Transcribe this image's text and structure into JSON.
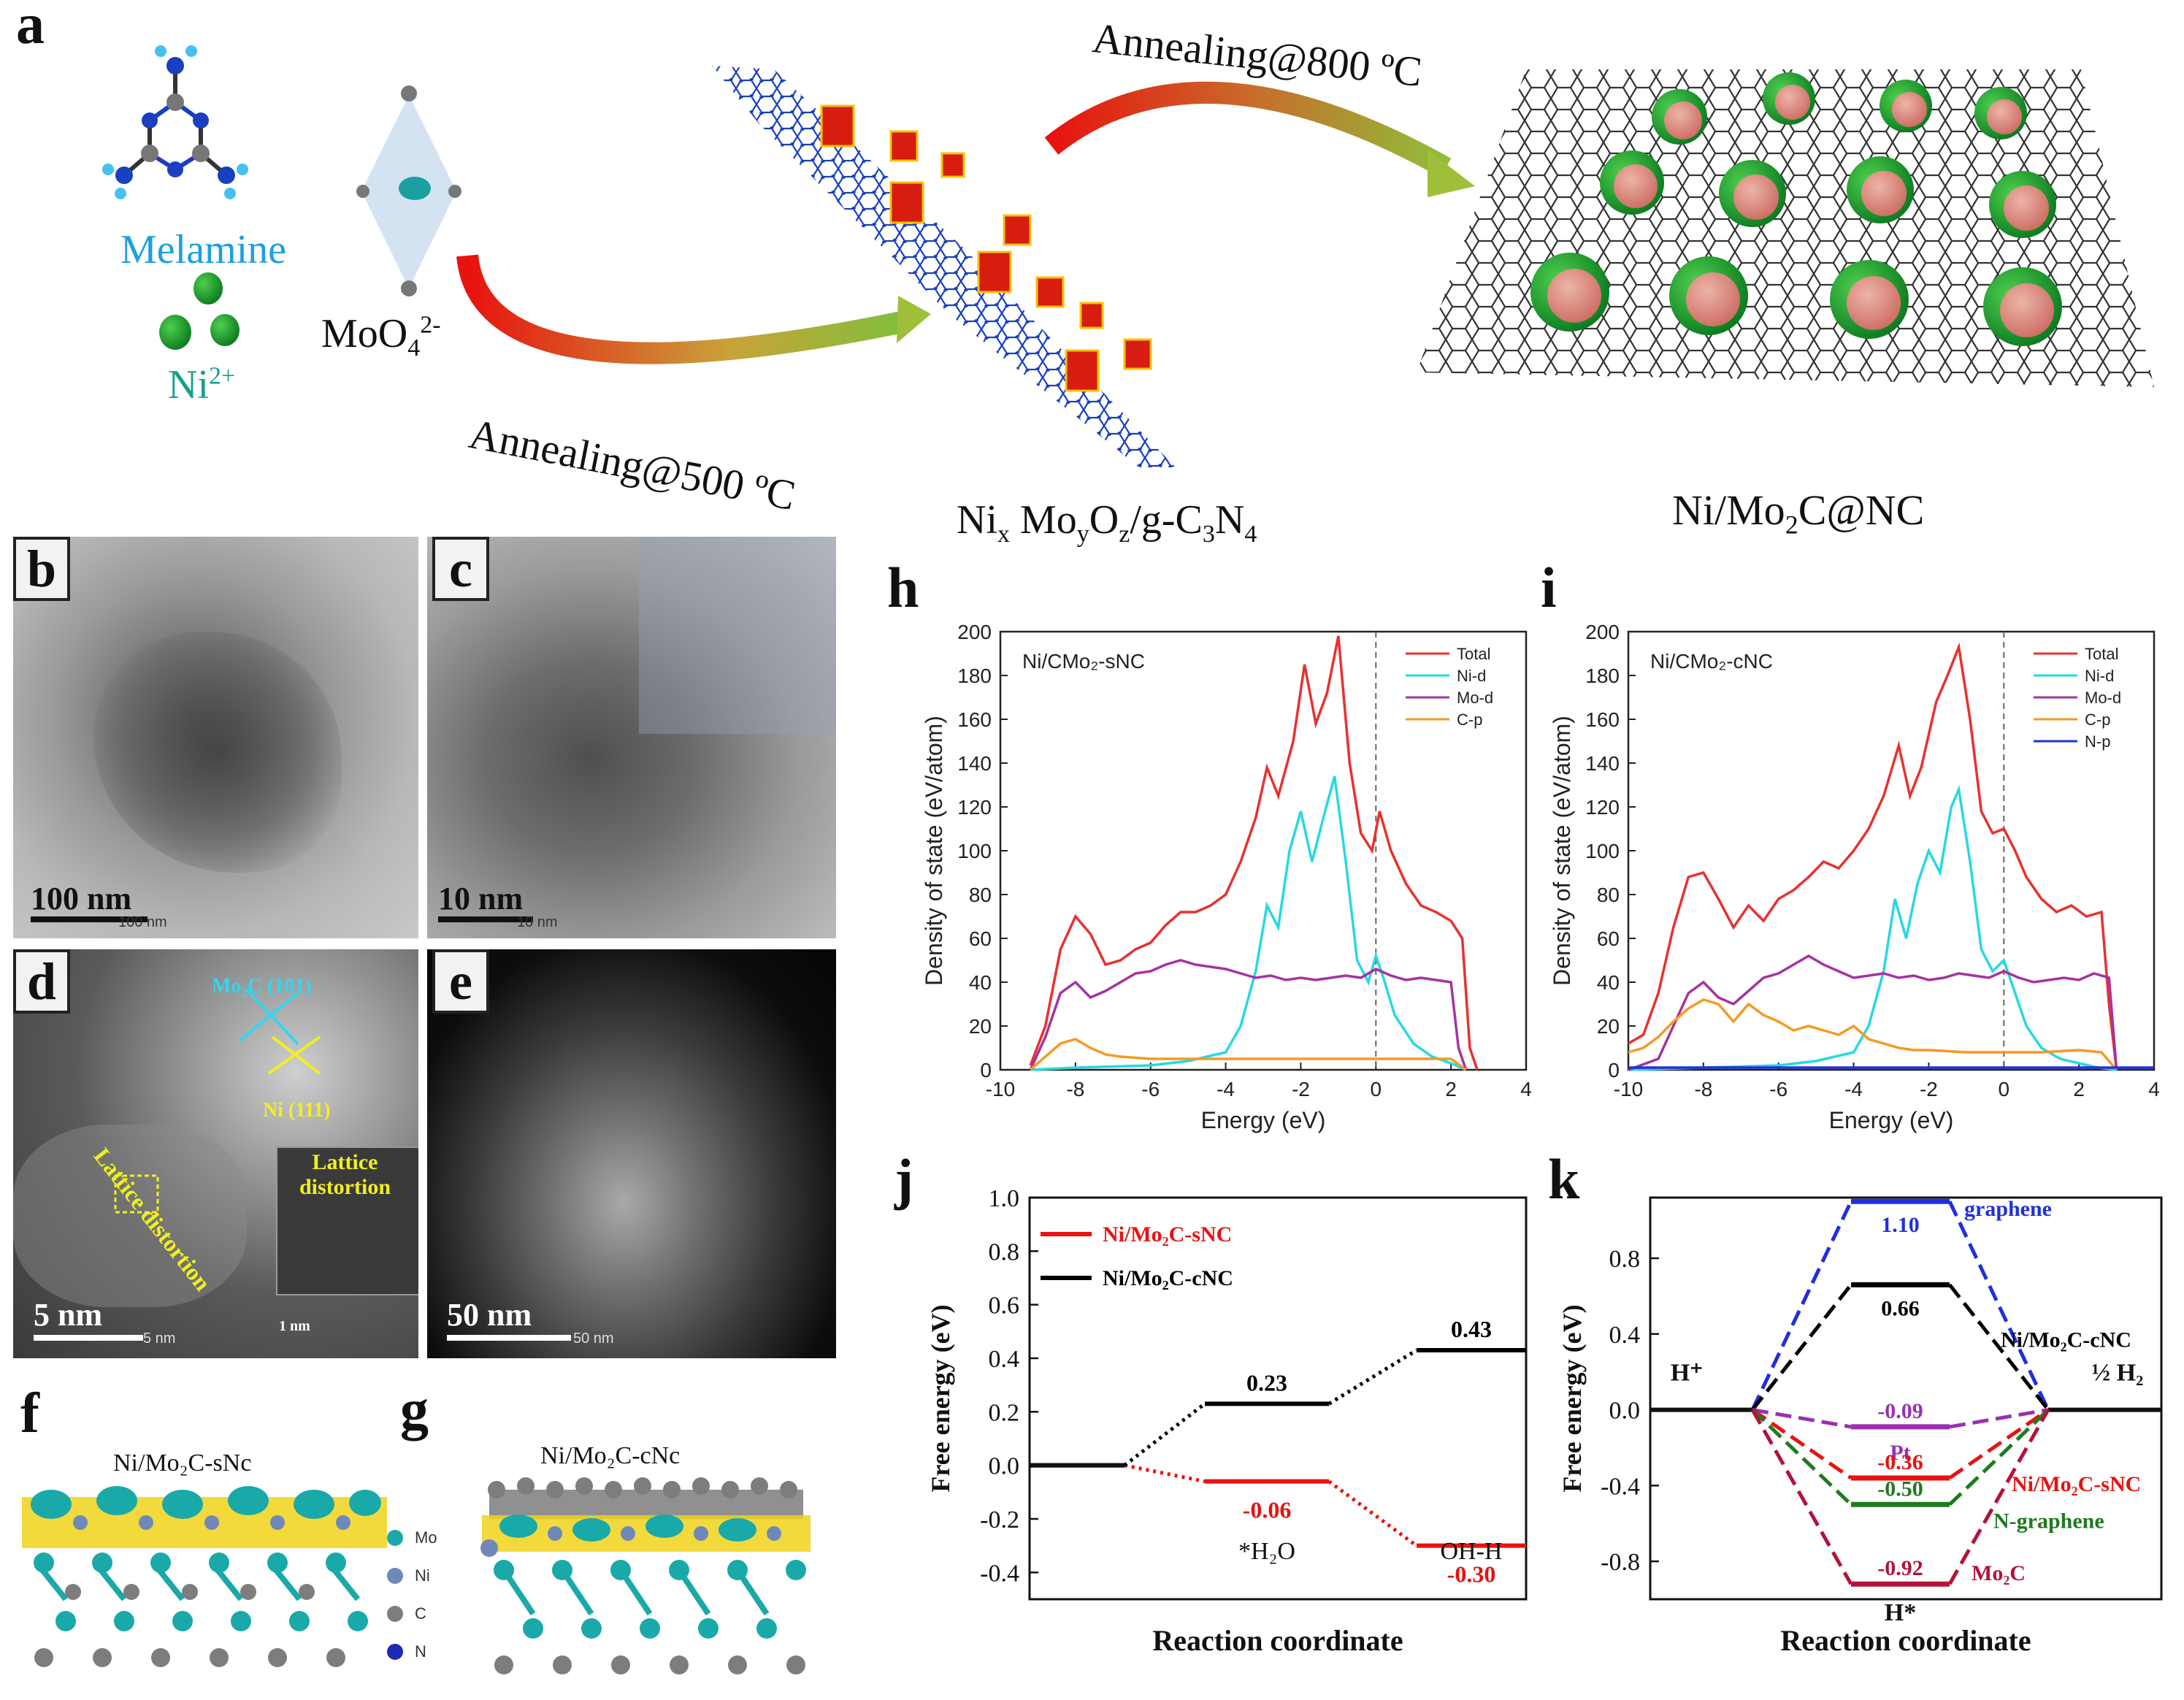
{
  "panel_a": {
    "letter": "a",
    "melamine": "Melamine",
    "ni_ion": "Ni",
    "ni_ion_sup": "2+",
    "moo4": "MoO",
    "moo4_sub": "4",
    "moo4_sup": "2-",
    "anneal1": "Annealing@500 ºC",
    "anneal2": "Annealing@800 ºC",
    "intermediate": "Ni",
    "intermediate_label_parts": [
      "Ni",
      "x",
      " Mo",
      "y",
      "O",
      "z",
      "/g-C",
      "3",
      "N",
      "4"
    ],
    "product_parts": [
      "Ni/Mo",
      "2",
      "C@NC"
    ]
  },
  "tem": {
    "b": {
      "letter": "b",
      "scale": "100 nm",
      "small": "100 nm"
    },
    "c": {
      "letter": "c",
      "scale": "10 nm",
      "small": "10 nm"
    },
    "d": {
      "letter": "d",
      "scale": "5 nm",
      "small": "5 nm",
      "mo2c": "Mo₂C (101)",
      "ni": "Ni (111)",
      "distortion": "Lattice distortion",
      "inset_distortion_1": "Lattice",
      "inset_distortion_2": "distortion",
      "inset_scale": "1 nm"
    },
    "e": {
      "letter": "e",
      "scale": "50 nm",
      "small": "50 nm"
    }
  },
  "structures": {
    "f": {
      "letter": "f",
      "title": "Ni/Mo₂C-sNc"
    },
    "g": {
      "letter": "g",
      "title": "Ni/Mo₂C-cNc"
    },
    "legend": [
      "Mo",
      "Ni",
      "C",
      "N"
    ],
    "legend_colors": [
      "#1aa9a9",
      "#6f88b8",
      "#7d7d7d",
      "#1c2bb5"
    ]
  },
  "chart_data": [
    {
      "panel": "h",
      "type": "line",
      "inset_title": "Ni/CMo₂-sNC",
      "xlabel": "Energy (eV)",
      "ylabel": "Density of state (eV/atom)",
      "xlim": [
        -10,
        4
      ],
      "ylim": [
        0,
        200
      ],
      "xticks": [
        "-10",
        "-8",
        "-6",
        "-4",
        "-2",
        "0",
        "2",
        "4"
      ],
      "yticks": [
        "0",
        "20",
        "40",
        "60",
        "80",
        "100",
        "120",
        "140",
        "160",
        "180",
        "200"
      ],
      "legend": "top-right",
      "series": [
        {
          "name": "Total",
          "color": "#e8312f",
          "x": [
            -9.2,
            -8.8,
            -8.4,
            -8.0,
            -7.6,
            -7.2,
            -6.8,
            -6.4,
            -6.0,
            -5.6,
            -5.2,
            -4.8,
            -4.4,
            -4.0,
            -3.6,
            -3.2,
            -2.9,
            -2.6,
            -2.2,
            -1.9,
            -1.6,
            -1.3,
            -1.0,
            -0.7,
            -0.4,
            -0.1,
            0.1,
            0.4,
            0.8,
            1.2,
            1.6,
            2.0,
            2.3,
            2.5,
            2.7
          ],
          "y": [
            2,
            20,
            55,
            70,
            62,
            48,
            50,
            55,
            58,
            66,
            72,
            72,
            75,
            80,
            95,
            115,
            138,
            125,
            150,
            185,
            158,
            172,
            198,
            140,
            108,
            100,
            118,
            100,
            85,
            75,
            72,
            68,
            60,
            10,
            0
          ]
        },
        {
          "name": "Ni-d",
          "color": "#27d8e3",
          "x": [
            -9.2,
            -8,
            -6,
            -5,
            -4,
            -3.6,
            -3.2,
            -2.9,
            -2.6,
            -2.3,
            -2.0,
            -1.7,
            -1.4,
            -1.1,
            -0.8,
            -0.5,
            -0.2,
            0.0,
            0.2,
            0.5,
            1.0,
            1.5,
            2.0,
            2.4
          ],
          "y": [
            0,
            1,
            2,
            4,
            8,
            20,
            45,
            75,
            65,
            100,
            118,
            95,
            115,
            134,
            95,
            50,
            40,
            52,
            42,
            25,
            12,
            6,
            3,
            0
          ]
        },
        {
          "name": "Mo-d",
          "color": "#a533a0",
          "x": [
            -9.2,
            -8.8,
            -8.4,
            -8.0,
            -7.6,
            -7.2,
            -6.8,
            -6.4,
            -6.0,
            -5.6,
            -5.2,
            -4.8,
            -4.4,
            -4.0,
            -3.6,
            -3.2,
            -2.8,
            -2.4,
            -2.0,
            -1.6,
            -1.2,
            -0.8,
            -0.4,
            0,
            0.4,
            0.8,
            1.2,
            1.6,
            2.0,
            2.2,
            2.4
          ],
          "y": [
            0,
            15,
            35,
            40,
            33,
            36,
            40,
            44,
            45,
            48,
            50,
            48,
            47,
            46,
            44,
            42,
            43,
            41,
            42,
            41,
            42,
            43,
            42,
            46,
            43,
            41,
            42,
            41,
            40,
            10,
            0
          ]
        },
        {
          "name": "C-p",
          "color": "#f59a23",
          "x": [
            -9.2,
            -8.8,
            -8.4,
            -8.0,
            -7.6,
            -7.2,
            -6.8,
            -6,
            -5,
            -4,
            -3,
            -2,
            -1,
            0,
            1,
            2,
            2.4
          ],
          "y": [
            0,
            6,
            12,
            14,
            10,
            7,
            6,
            5,
            5,
            5,
            5,
            5,
            5,
            5,
            5,
            5,
            0
          ]
        }
      ]
    },
    {
      "panel": "i",
      "type": "line",
      "inset_title": "Ni/CMo₂-cNC",
      "xlabel": "Energy (eV)",
      "ylabel": "Density of state (eV/atom)",
      "xlim": [
        -10,
        4
      ],
      "ylim": [
        0,
        200
      ],
      "xticks": [
        "-10",
        "-8",
        "-6",
        "-4",
        "-2",
        "0",
        "2",
        "4"
      ],
      "yticks": [
        "0",
        "20",
        "40",
        "60",
        "80",
        "100",
        "120",
        "140",
        "160",
        "180",
        "200"
      ],
      "legend": "top-right",
      "series": [
        {
          "name": "Total",
          "color": "#e8312f",
          "x": [
            -10,
            -9.6,
            -9.2,
            -8.8,
            -8.4,
            -8.0,
            -7.6,
            -7.2,
            -6.8,
            -6.4,
            -6.0,
            -5.6,
            -5.2,
            -4.8,
            -4.4,
            -4.0,
            -3.6,
            -3.2,
            -2.8,
            -2.5,
            -2.2,
            -1.8,
            -1.5,
            -1.2,
            -0.9,
            -0.6,
            -0.3,
            0.0,
            0.3,
            0.6,
            1.0,
            1.4,
            1.8,
            2.2,
            2.6,
            2.8,
            3.0
          ],
          "y": [
            12,
            16,
            35,
            65,
            88,
            90,
            78,
            65,
            75,
            68,
            78,
            82,
            88,
            95,
            92,
            100,
            110,
            125,
            148,
            125,
            138,
            168,
            180,
            193,
            160,
            118,
            108,
            110,
            100,
            88,
            78,
            72,
            75,
            70,
            72,
            30,
            0
          ]
        },
        {
          "name": "Ni-d",
          "color": "#27d8e3",
          "x": [
            -10,
            -8,
            -6,
            -5,
            -4,
            -3.6,
            -3.2,
            -2.9,
            -2.6,
            -2.3,
            -2.0,
            -1.7,
            -1.4,
            -1.2,
            -0.9,
            -0.6,
            -0.3,
            0.0,
            0.3,
            0.6,
            1.0,
            1.5,
            2.0,
            2.5,
            3.0
          ],
          "y": [
            0,
            1,
            2,
            4,
            8,
            20,
            45,
            78,
            60,
            85,
            100,
            90,
            120,
            128,
            95,
            55,
            45,
            50,
            35,
            20,
            10,
            5,
            3,
            1,
            0
          ]
        },
        {
          "name": "Mo-d",
          "color": "#a533a0",
          "x": [
            -10,
            -9.2,
            -8.8,
            -8.4,
            -8.0,
            -7.6,
            -7.2,
            -6.8,
            -6.4,
            -6.0,
            -5.6,
            -5.2,
            -4.8,
            -4.4,
            -4.0,
            -3.6,
            -3.2,
            -2.8,
            -2.4,
            -2.0,
            -1.6,
            -1.2,
            -0.8,
            -0.4,
            0,
            0.4,
            0.8,
            1.2,
            1.6,
            2.0,
            2.4,
            2.8,
            3.0
          ],
          "y": [
            0,
            5,
            20,
            35,
            40,
            33,
            30,
            36,
            42,
            44,
            48,
            52,
            48,
            45,
            42,
            43,
            44,
            42,
            43,
            41,
            42,
            44,
            43,
            42,
            45,
            42,
            40,
            41,
            42,
            41,
            44,
            42,
            0
          ]
        },
        {
          "name": "C-p",
          "color": "#f59a23",
          "x": [
            -10,
            -9.6,
            -9.2,
            -8.8,
            -8.4,
            -8.0,
            -7.6,
            -7.2,
            -6.8,
            -6.4,
            -6.0,
            -5.6,
            -5.2,
            -4.8,
            -4.4,
            -4.0,
            -3.6,
            -3.2,
            -2.8,
            -2.4,
            -2,
            -1,
            0,
            1,
            2,
            2.6,
            3.0
          ],
          "y": [
            8,
            10,
            15,
            22,
            28,
            32,
            30,
            22,
            30,
            25,
            22,
            18,
            20,
            18,
            16,
            20,
            14,
            12,
            10,
            9,
            9,
            8,
            8,
            8,
            9,
            8,
            0
          ]
        },
        {
          "name": "N-p",
          "color": "#2230d8",
          "x": [
            -10,
            4
          ],
          "y": [
            1,
            1
          ]
        }
      ]
    },
    {
      "panel": "j",
      "type": "line",
      "xlabel": "Reaction coordinate",
      "ylabel": "Free energy (eV)",
      "ylim": [
        -0.5,
        1.0
      ],
      "yticks": [
        "1.0",
        "0.8",
        "0.6",
        "0.4",
        "0.2",
        "0.0",
        "-0.2",
        "-0.4"
      ],
      "categories": [
        "",
        "*H₂O",
        "OH-H"
      ],
      "legend": "top-left",
      "series": [
        {
          "name": "Ni/Mo₂C-sNC",
          "color": "#e8120f",
          "values": [
            0.0,
            -0.06,
            -0.3
          ],
          "labels": [
            "",
            "-0.06",
            "-0.30"
          ]
        },
        {
          "name": "Ni/Mo₂C-cNC",
          "color": "#000000",
          "values": [
            0.0,
            0.23,
            0.43
          ],
          "labels": [
            "",
            "0.23",
            "0.43"
          ]
        }
      ]
    },
    {
      "panel": "k",
      "type": "line",
      "xlabel": "Reaction coordinate",
      "ylabel": "Free energy (eV)",
      "ylim": [
        -1.0,
        1.12
      ],
      "yticks": [
        "0.8",
        "0.4",
        "0.0",
        "-0.4",
        "-0.8"
      ],
      "categories": [
        "H⁺",
        "H*",
        "½ H₂"
      ],
      "series": [
        {
          "name": "graphene",
          "color": "#1f2fe0",
          "value": 1.1,
          "label": "1.10"
        },
        {
          "name": "Ni/Mo₂C-cNC",
          "color": "#000000",
          "value": 0.66,
          "label": "0.66"
        },
        {
          "name": "Pt",
          "color": "#9a2fb0",
          "value": -0.09,
          "label": "-0.09"
        },
        {
          "name": "Ni/Mo₂C-sNC",
          "color": "#e8120f",
          "value": -0.36,
          "label": "-0.36"
        },
        {
          "name": "N-graphene",
          "color": "#1f7a1f",
          "value": -0.5,
          "label": "-0.50"
        },
        {
          "name": "Mo₂C",
          "color": "#b3123a",
          "value": -0.92,
          "label": "-0.92"
        }
      ]
    }
  ]
}
